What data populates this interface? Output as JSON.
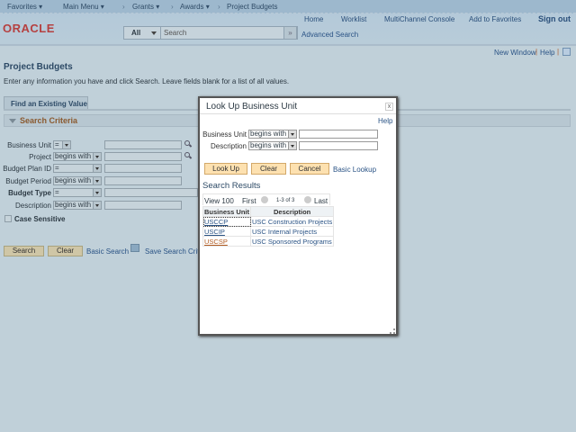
{
  "nav": {
    "favorites": "Favorites ▾",
    "main_menu": "Main Menu ▾",
    "grants": "Grants ▾",
    "awards": "Awards ▾",
    "current": "Project Budgets"
  },
  "header": {
    "logo": "ORACLE",
    "links": [
      "Home",
      "Worklist",
      "MultiChannel Console",
      "Add to Favorites"
    ],
    "sign_out": "Sign out",
    "search_scope": "All",
    "search_placeholder": "Search",
    "advanced_search": "Advanced Search"
  },
  "util": {
    "new_window": "New Window",
    "help": "Help"
  },
  "page": {
    "title": "Project Budgets",
    "instructions": "Enter any information you have and click Search. Leave fields blank for a list of all values.",
    "tab": "Find an Existing Value",
    "section": "Search Criteria",
    "fields": [
      {
        "label": "Business Unit",
        "op": "="
      },
      {
        "label": "Project",
        "op": "begins with"
      },
      {
        "label": "Budget Plan ID",
        "op": "="
      },
      {
        "label": "Budget Period",
        "op": "begins with"
      },
      {
        "label": "Budget Type",
        "op": "="
      },
      {
        "label": "Description",
        "op": "begins with"
      }
    ],
    "case_sensitive": "Case Sensitive",
    "search": "Search",
    "clear": "Clear",
    "basic_search": "Basic Search",
    "save_search": "Save Search Criteria"
  },
  "modal": {
    "title": "Look Up Business Unit",
    "close": "x",
    "help": "Help",
    "fields": [
      {
        "label": "Business Unit",
        "op": "begins with"
      },
      {
        "label": "Description",
        "op": "begins with"
      }
    ],
    "look_up": "Look Up",
    "clear": "Clear",
    "cancel": "Cancel",
    "basic_lookup": "Basic Lookup",
    "results_title": "Search Results",
    "view100": "View 100",
    "first": "First",
    "range": "1-3 of 3",
    "last": "Last",
    "columns": [
      "Business Unit",
      "Description"
    ],
    "rows": [
      [
        "USCCP",
        "USC Construction Projects"
      ],
      [
        "USCIP",
        "USC Internal Projects"
      ],
      [
        "USCSP",
        "USC Sponsored Programs"
      ]
    ]
  }
}
